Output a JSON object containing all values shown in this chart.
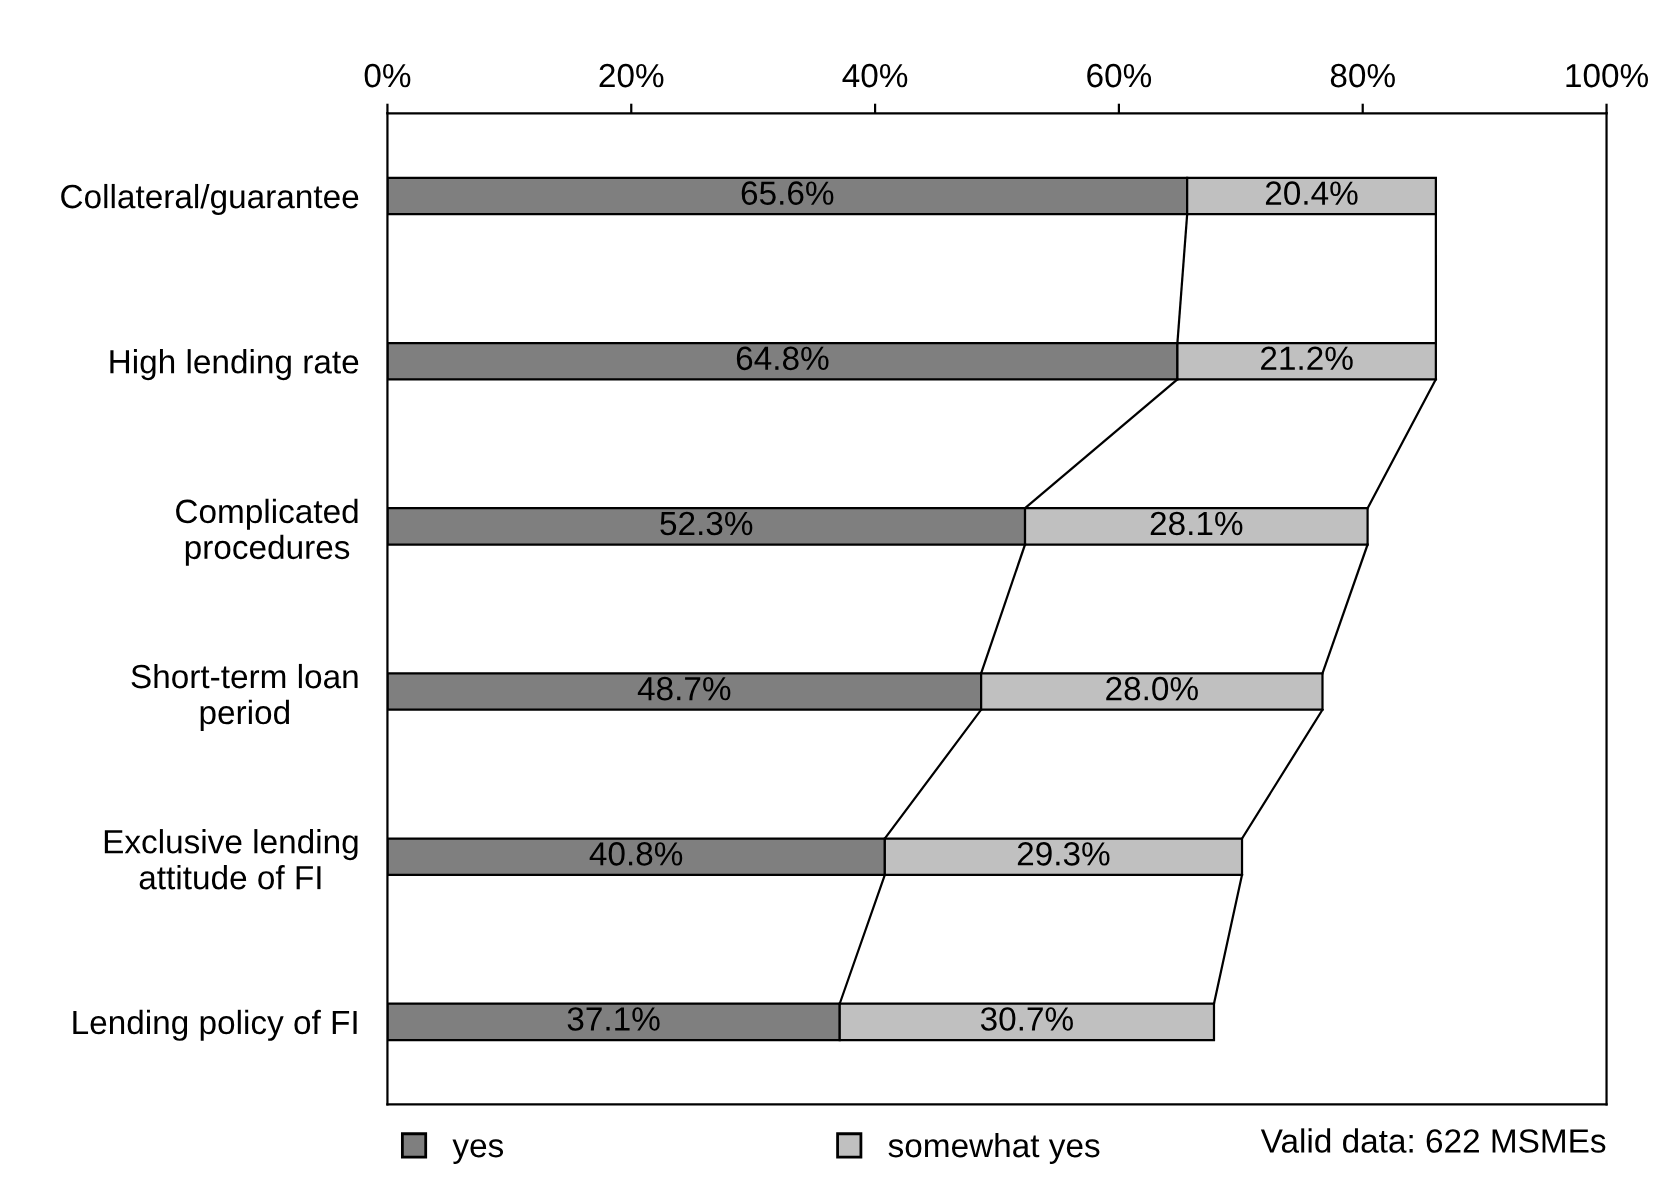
{
  "chart_data": {
    "type": "bar",
    "orientation": "horizontal",
    "stacked": true,
    "categories": [
      "Collateral/guarantee",
      "High lending rate",
      "Complicated\nprocedures",
      "Short-term loan\nperiod",
      "Exclusive lending\nattitude of FI",
      "Lending policy of FI"
    ],
    "series": [
      {
        "name": "yes",
        "color": "#7f7f7f",
        "values": [
          65.6,
          64.8,
          52.3,
          48.7,
          40.8,
          37.1
        ],
        "value_labels": [
          "65.6%",
          "64.8%",
          "52.3%",
          "48.7%",
          "40.8%",
          "37.1%"
        ]
      },
      {
        "name": "somewhat yes",
        "color": "#c0c0c0",
        "values": [
          20.4,
          21.2,
          28.1,
          28.0,
          29.3,
          30.7
        ],
        "value_labels": [
          "20.4%",
          "21.2%",
          "28.1%",
          "28.0%",
          "29.3%",
          "30.7%"
        ]
      }
    ],
    "xlim": [
      0,
      100
    ],
    "xticks": [
      {
        "value": 0,
        "label": "0%"
      },
      {
        "value": 20,
        "label": "20%"
      },
      {
        "value": 40,
        "label": "40%"
      },
      {
        "value": 60,
        "label": "60%"
      },
      {
        "value": 80,
        "label": "80%"
      },
      {
        "value": 100,
        "label": "100%"
      }
    ],
    "legend": "bottom",
    "grid": false,
    "annotations": [
      "Valid data: 622 MSMEs"
    ]
  }
}
